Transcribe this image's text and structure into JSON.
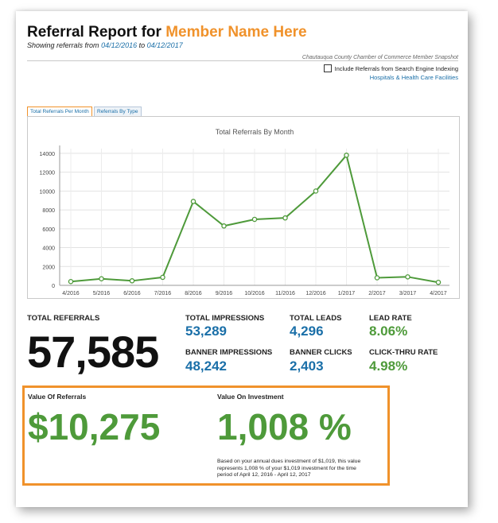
{
  "header": {
    "title_prefix": "Referral Report for",
    "member_name": "Member Name Here",
    "subtitle_prefix": "Showing referrals from",
    "date_from": "04/12/2016",
    "subtitle_to": "to",
    "date_to": "04/12/2017",
    "org_name": "Chautauqua County Chamber of Commerce Member Snapshot",
    "include_checkbox_label": "Include Referrals from Search Engine Indexing",
    "include_checkbox_checked": false,
    "category_link": "Hospitals & Health Care Facilities"
  },
  "tabs": [
    {
      "label": "Total Referrals Per Month",
      "active": true
    },
    {
      "label": "Referrals By Type",
      "active": false
    }
  ],
  "chart_data": {
    "type": "line",
    "title": "Total Referrals By Month",
    "categories": [
      "4/2016",
      "5/2016",
      "6/2016",
      "7/2016",
      "8/2016",
      "9/2016",
      "10/2016",
      "11/2016",
      "12/2016",
      "1/2017",
      "2/2017",
      "3/2017",
      "4/2017"
    ],
    "values": [
      400,
      700,
      480,
      850,
      8900,
      6300,
      7000,
      7150,
      10000,
      13800,
      800,
      900,
      320
    ],
    "yticks": [
      0,
      2000,
      4000,
      6000,
      8000,
      10000,
      12000,
      14000
    ],
    "ylim": [
      0,
      14500
    ],
    "grid": true,
    "line_color": "#4e9a3a"
  },
  "stats": {
    "total_referrals_label": "TOTAL REFERRALS",
    "total_referrals_value": "57,585",
    "total_impressions_label": "TOTAL IMPRESSIONS",
    "total_impressions_value": "53,289",
    "banner_impressions_label": "BANNER IMPRESSIONS",
    "banner_impressions_value": "48,242",
    "total_leads_label": "TOTAL LEADS",
    "total_leads_value": "4,296",
    "banner_clicks_label": "BANNER CLICKS",
    "banner_clicks_value": "2,403",
    "lead_rate_label": "LEAD RATE",
    "lead_rate_value": "8.06%",
    "click_thru_label": "CLICK-THRU RATE",
    "click_thru_value": "4.98%"
  },
  "value_box": {
    "value_referrals_label": "Value Of Referrals",
    "value_referrals": "$10,275",
    "value_investment_label": "Value On Investment",
    "value_investment": "1,008 %",
    "note": "Based on your annual dues investment of $1,019, this value represents 1,008 % of your $1,019 investment for the time period of April 12, 2016 - April 12, 2017"
  },
  "colors": {
    "accent_orange": "#f0922b",
    "link_blue": "#1a6fa8",
    "positive_green": "#4e9a3a"
  }
}
